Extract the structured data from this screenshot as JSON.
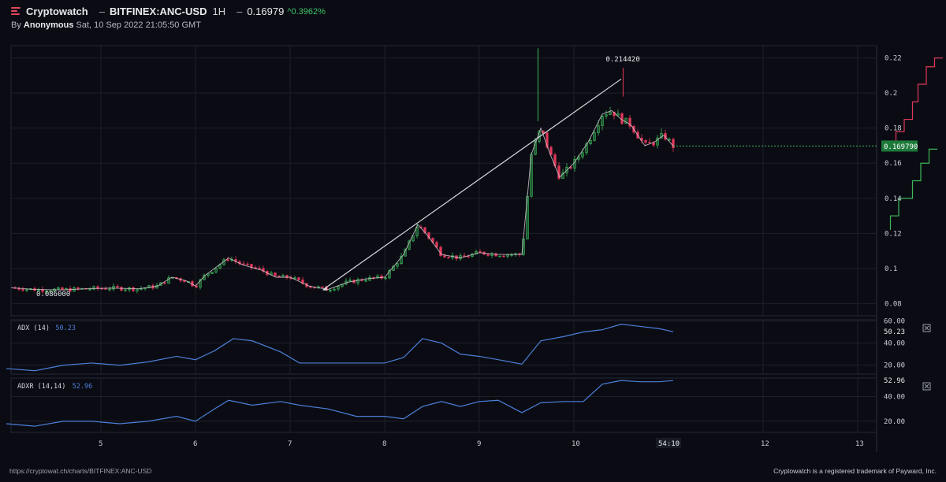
{
  "header": {
    "brand": "Cryptowatch",
    "dash1": "–",
    "pair": "BITFINEX:ANC-USD",
    "timeframe": "1H",
    "dash2": "–",
    "last_price": "0.16979",
    "change": "^0.3962%",
    "by_prefix": "By",
    "author": "Anonymous",
    "timestamp": "Sat, 10 Sep 2022 21:05:50 GMT"
  },
  "footer": {
    "url": "https://cryptowat.ch/charts/BITFINEX:ANC-USD",
    "trademark": "Cryptowatch is a registered trademark of Payward, Inc."
  },
  "colors": {
    "background": "#0b0c13",
    "grid": "#1c1f2b",
    "up": "#3cb85a",
    "down": "#e0385a",
    "indicator": "#4b7fd9",
    "price_badge": "#1e7a3a",
    "trendline": "#d8d8e0"
  },
  "chart_data": {
    "type": "candlestick",
    "price_panel": {
      "y_ticks": [
        "0.22",
        "0.2",
        "0.18",
        "0.16",
        "0.14",
        "0.12",
        "0.1",
        "0.08"
      ],
      "y_tick_values": [
        0.22,
        0.2,
        0.18,
        0.16,
        0.14,
        0.12,
        0.1,
        0.08
      ],
      "ylim": [
        0.073,
        0.227
      ],
      "last_price_label": "0.169790",
      "last_price": 0.16979,
      "high_label": "0.214420",
      "high_value": 0.21442,
      "low_label": "0.086000",
      "low_value": 0.086,
      "close_path": [
        [
          4.05,
          0.089
        ],
        [
          4.3,
          0.088
        ],
        [
          4.6,
          0.0878
        ],
        [
          4.9,
          0.0885
        ],
        [
          5.1,
          0.0888
        ],
        [
          5.4,
          0.0884
        ],
        [
          5.6,
          0.09
        ],
        [
          5.75,
          0.095
        ],
        [
          5.9,
          0.093
        ],
        [
          6.0,
          0.09
        ],
        [
          6.1,
          0.096
        ],
        [
          6.25,
          0.102
        ],
        [
          6.35,
          0.106
        ],
        [
          6.5,
          0.102
        ],
        [
          6.7,
          0.099
        ],
        [
          6.85,
          0.095
        ],
        [
          7.0,
          0.095
        ],
        [
          7.2,
          0.09
        ],
        [
          7.4,
          0.088
        ],
        [
          7.6,
          0.092
        ],
        [
          7.8,
          0.094
        ],
        [
          8.0,
          0.095
        ],
        [
          8.2,
          0.108
        ],
        [
          8.35,
          0.125
        ],
        [
          8.45,
          0.119
        ],
        [
          8.6,
          0.108
        ],
        [
          8.8,
          0.106
        ],
        [
          9.0,
          0.109
        ],
        [
          9.2,
          0.108
        ],
        [
          9.45,
          0.108
        ],
        [
          9.55,
          0.165
        ],
        [
          9.65,
          0.18
        ],
        [
          9.75,
          0.165
        ],
        [
          9.85,
          0.152
        ],
        [
          10.0,
          0.16
        ],
        [
          10.15,
          0.172
        ],
        [
          10.3,
          0.188
        ],
        [
          10.4,
          0.19
        ],
        [
          10.5,
          0.185
        ],
        [
          10.6,
          0.182
        ],
        [
          10.75,
          0.17
        ],
        [
          10.85,
          0.172
        ],
        [
          10.95,
          0.176
        ],
        [
          11.05,
          0.1698
        ]
      ],
      "trendline": [
        [
          7.35,
          0.088
        ],
        [
          10.5,
          0.208
        ]
      ]
    },
    "adx_panel": {
      "title": "ADX (14)",
      "current_label": "50.23",
      "current_value": 50.23,
      "y_ticks": [
        "60.00",
        "40.00",
        "20.00"
      ],
      "y_tick_values": [
        60,
        40,
        20
      ],
      "ylim": [
        12,
        61
      ],
      "x": [
        4.0,
        4.3,
        4.6,
        4.9,
        5.2,
        5.5,
        5.8,
        6.0,
        6.2,
        6.4,
        6.6,
        6.9,
        7.1,
        7.4,
        7.7,
        8.0,
        8.2,
        8.4,
        8.6,
        8.8,
        9.0,
        9.2,
        9.45,
        9.65,
        9.9,
        10.1,
        10.3,
        10.5,
        10.7,
        10.9,
        11.05
      ],
      "values": [
        17,
        15,
        20,
        22,
        20,
        23,
        28,
        25,
        33,
        44,
        42,
        32,
        22,
        22,
        22,
        22,
        27,
        44,
        40,
        30,
        28,
        25,
        21,
        42,
        46,
        50,
        52,
        57,
        55,
        53,
        50.23
      ]
    },
    "adxr_panel": {
      "title": "ADXR (14,14)",
      "current_label": "52.96",
      "current_value": 52.96,
      "y_ticks": [
        "40.00",
        "20.00"
      ],
      "y_tick_values": [
        40,
        20
      ],
      "ylim": [
        11,
        55
      ],
      "x": [
        4.0,
        4.3,
        4.6,
        4.9,
        5.2,
        5.5,
        5.8,
        6.0,
        6.2,
        6.35,
        6.6,
        6.9,
        7.1,
        7.4,
        7.7,
        8.0,
        8.2,
        8.4,
        8.6,
        8.8,
        9.0,
        9.2,
        9.45,
        9.65,
        9.9,
        10.1,
        10.3,
        10.5,
        10.7,
        10.9,
        11.05
      ],
      "values": [
        18,
        16,
        20,
        20,
        18,
        20,
        24,
        20,
        30,
        37,
        33,
        36,
        33,
        30,
        24,
        24,
        22,
        32,
        36,
        32,
        36,
        37,
        27,
        35,
        36,
        36,
        50,
        53,
        52,
        52,
        52.96
      ]
    },
    "x_axis": {
      "ticks": [
        "5",
        "6",
        "7",
        "8",
        "9",
        "10",
        "12",
        "13"
      ],
      "tick_values": [
        5,
        6,
        7,
        8,
        9,
        10,
        12,
        13
      ],
      "countdown_label": "54:10",
      "countdown_value": 11.0,
      "xlim": [
        4.05,
        13.2
      ]
    },
    "order_book": {
      "asks_x_fraction": [
        [
          0.22,
          0.0
        ],
        [
          0.215,
          0.15
        ],
        [
          0.205,
          0.3
        ],
        [
          0.195,
          0.45
        ],
        [
          0.185,
          0.55
        ],
        [
          0.178,
          0.7
        ],
        [
          0.172,
          0.85
        ]
      ],
      "bids_x_fraction": [
        [
          0.168,
          0.9
        ],
        [
          0.16,
          0.75
        ],
        [
          0.15,
          0.6
        ],
        [
          0.14,
          0.45
        ],
        [
          0.13,
          0.2
        ],
        [
          0.122,
          0.05
        ]
      ]
    }
  }
}
